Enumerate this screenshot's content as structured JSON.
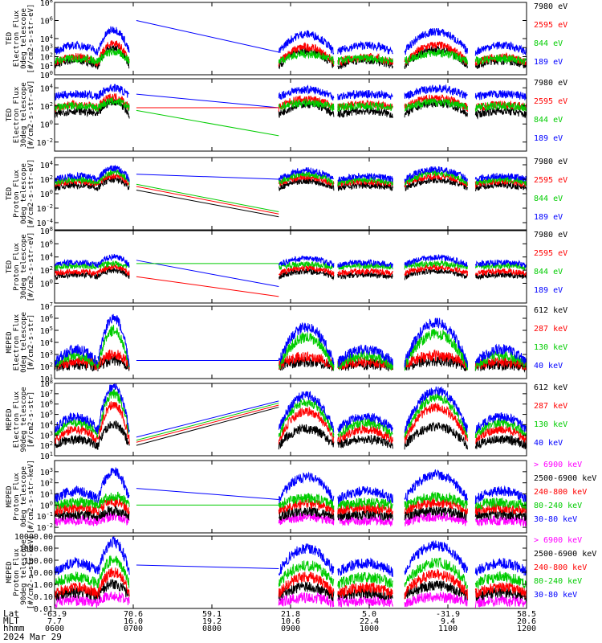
{
  "chart_data": {
    "type": "line",
    "x_axis": {
      "rows": [
        {
          "name": "Lat",
          "values": [
            "-63.9",
            "70.6",
            "59.1",
            "21.8",
            "5.0",
            "-31.9",
            "58.5"
          ]
        },
        {
          "name": "MLT",
          "values": [
            "7.7",
            "16.0",
            "19.2",
            "10.6",
            "22.4",
            "9.4",
            "20.6"
          ]
        },
        {
          "name": "hhmm",
          "values": [
            "0600",
            "0700",
            "0800",
            "0900",
            "1000",
            "1100",
            "1200"
          ]
        }
      ],
      "date": "2024 Mar 29",
      "range_hours": [
        6,
        12
      ]
    },
    "panels": [
      {
        "ylabel": [
          "TED",
          "Electron Flux",
          "0deg telescope",
          "[#/cm2-s-str-eV]"
        ],
        "yticks": [
          {
            "label": "10^8",
            "exp": 8,
            "base": "10",
            "sup": "8"
          },
          {
            "label": "10^6",
            "exp": 6,
            "base": "10",
            "sup": "6"
          },
          {
            "label": "10^4",
            "exp": 4,
            "base": "10",
            "sup": "4"
          },
          {
            "label": "10^3",
            "exp": 3,
            "base": "10",
            "sup": "3"
          },
          {
            "label": "10^2",
            "exp": 2,
            "base": "10",
            "sup": "2"
          },
          {
            "label": "10^1",
            "exp": 1,
            "base": "10",
            "sup": "1"
          },
          {
            "label": "10^0",
            "exp": 0,
            "base": "10",
            "sup": "0"
          }
        ],
        "yrange_log10": [
          0,
          8
        ],
        "series": [
          {
            "name": "7980 eV",
            "color": "#000000",
            "peak_log": 3.0,
            "floor_log": 1.0
          },
          {
            "name": "2595 eV",
            "color": "#ff0000",
            "peak_log": 3.5,
            "floor_log": 1.3
          },
          {
            "name": "844 eV",
            "color": "#00cc00",
            "peak_log": 2.5,
            "floor_log": 1.5
          },
          {
            "name": "189 eV",
            "color": "#0000ff",
            "peak_log": 5.0,
            "floor_log": 2.5
          }
        ],
        "gap_lines": [
          {
            "color": "#0000ff",
            "from_log": 6.0,
            "to_log": 2.5
          }
        ]
      },
      {
        "ylabel": [
          "TED",
          "Electron Flux",
          "30deg telescope",
          "[#/cm2-s-str-eV]"
        ],
        "yticks": [
          {
            "label": "10^4",
            "exp": 4,
            "base": "10",
            "sup": "4"
          },
          {
            "label": "10^2",
            "exp": 2,
            "base": "10",
            "sup": "2"
          },
          {
            "label": "10^0",
            "exp": 0,
            "base": "10",
            "sup": "0"
          },
          {
            "label": "10^-2",
            "exp": -2,
            "base": "10",
            "sup": "-2"
          }
        ],
        "yrange_log10": [
          -3,
          5
        ],
        "series": [
          {
            "name": "7980 eV",
            "color": "#000000",
            "peak_log": 2.5,
            "floor_log": 1.0
          },
          {
            "name": "2595 eV",
            "color": "#ff0000",
            "peak_log": 3.0,
            "floor_log": 1.8
          },
          {
            "name": "844 eV",
            "color": "#00cc00",
            "peak_log": 2.5,
            "floor_log": 1.8
          },
          {
            "name": "189 eV",
            "color": "#0000ff",
            "peak_log": 4.0,
            "floor_log": 3.0
          }
        ],
        "gap_lines": [
          {
            "color": "#0000ff",
            "from_log": 3.3,
            "to_log": 1.8
          },
          {
            "color": "#ff0000",
            "from_log": 1.8,
            "to_log": 1.8
          },
          {
            "color": "#00cc00",
            "from_log": 1.5,
            "to_log": -1.3
          }
        ]
      },
      {
        "ylabel": [
          "TED",
          "Proton Flux",
          "0deg telescope",
          "[#/cm2-s-str-eV]"
        ],
        "yticks": [
          {
            "label": "10^4",
            "exp": 4,
            "base": "10",
            "sup": "4"
          },
          {
            "label": "10^2",
            "exp": 2,
            "base": "10",
            "sup": "2"
          },
          {
            "label": "10^0",
            "exp": 0,
            "base": "10",
            "sup": "0"
          },
          {
            "label": "10^-2",
            "exp": -2,
            "base": "10",
            "sup": "-2"
          },
          {
            "label": "10^-4",
            "exp": -4,
            "base": "10",
            "sup": "-4"
          }
        ],
        "yrange_log10": [
          -5,
          5
        ],
        "series": [
          {
            "name": "7980 eV",
            "color": "#000000",
            "peak_log": 2.0,
            "floor_log": 0.8
          },
          {
            "name": "2595 eV",
            "color": "#ff0000",
            "peak_log": 2.5,
            "floor_log": 1.3
          },
          {
            "name": "844 eV",
            "color": "#00cc00",
            "peak_log": 3.0,
            "floor_log": 1.5
          },
          {
            "name": "189 eV",
            "color": "#0000ff",
            "peak_log": 3.5,
            "floor_log": 2.0
          }
        ],
        "gap_lines": [
          {
            "color": "#0000ff",
            "from_log": 2.7,
            "to_log": 2.0
          },
          {
            "color": "#00cc00",
            "from_log": 1.3,
            "to_log": -2.5
          },
          {
            "color": "#ff0000",
            "from_log": 1.0,
            "to_log": -2.8
          },
          {
            "color": "#000000",
            "from_log": 0.5,
            "to_log": -3.2
          }
        ]
      },
      {
        "ylabel": [
          "TED",
          "Proton Flux",
          "30deg telescope",
          "[#/cm2-s-str-eV]"
        ],
        "yticks": [
          {
            "label": "10^8",
            "exp": 8,
            "base": "10",
            "sup": "8"
          },
          {
            "label": "10^6",
            "exp": 6,
            "base": "10",
            "sup": "6"
          },
          {
            "label": "10^4",
            "exp": 4,
            "base": "10",
            "sup": "4"
          },
          {
            "label": "10^2",
            "exp": 2,
            "base": "10",
            "sup": "2"
          },
          {
            "label": "10^0",
            "exp": 0,
            "base": "10",
            "sup": "0"
          }
        ],
        "yrange_log10": [
          -3,
          8
        ],
        "series": [
          {
            "name": "7980 eV",
            "color": "#000000",
            "peak_log": 2.0,
            "floor_log": 1.0
          },
          {
            "name": "2595 eV",
            "color": "#ff0000",
            "peak_log": 2.5,
            "floor_log": 1.5
          },
          {
            "name": "844 eV",
            "color": "#00cc00",
            "peak_log": 3.0,
            "floor_log": 2.5
          },
          {
            "name": "189 eV",
            "color": "#0000ff",
            "peak_log": 4.0,
            "floor_log": 2.8
          }
        ],
        "gap_lines": [
          {
            "color": "#0000ff",
            "from_log": 3.5,
            "to_log": -0.5
          },
          {
            "color": "#00cc00",
            "from_log": 3.0,
            "to_log": 3.0
          },
          {
            "color": "#ff0000",
            "from_log": 1.0,
            "to_log": -2.0
          }
        ]
      },
      {
        "ylabel": [
          "MEPED",
          "Electron Flux",
          "0deg telescope",
          "[#/cm2-s-str]"
        ],
        "yticks": [
          {
            "label": "10^7",
            "exp": 7,
            "base": "10",
            "sup": "7"
          },
          {
            "label": "10^6",
            "exp": 6,
            "base": "10",
            "sup": "6"
          },
          {
            "label": "10^5",
            "exp": 5,
            "base": "10",
            "sup": "5"
          },
          {
            "label": "10^4",
            "exp": 4,
            "base": "10",
            "sup": "4"
          },
          {
            "label": "10^3",
            "exp": 3,
            "base": "10",
            "sup": "3"
          },
          {
            "label": "10^2",
            "exp": 2,
            "base": "10",
            "sup": "2"
          },
          {
            "label": "10^1",
            "exp": 1,
            "base": "10",
            "sup": "1"
          }
        ],
        "yrange_log10": [
          1,
          7
        ],
        "series": [
          {
            "name": "612 keV",
            "color": "#000000",
            "peak_log": 2.5,
            "floor_log": 2.0
          },
          {
            "name": "287 keV",
            "color": "#ff0000",
            "peak_log": 3.0,
            "floor_log": 2.1
          },
          {
            "name": "130 keV",
            "color": "#00cc00",
            "peak_log": 5.0,
            "floor_log": 2.0
          },
          {
            "name": "40 keV",
            "color": "#0000ff",
            "peak_log": 6.0,
            "floor_log": 2.3
          }
        ],
        "gap_lines": [
          {
            "color": "#0000ff",
            "from_log": 2.5,
            "to_log": 2.5
          }
        ]
      },
      {
        "ylabel": [
          "MEPED",
          "Electron Flux",
          "90deg telescope",
          "[#/cm2-s-str]"
        ],
        "yticks": [
          {
            "label": "10^8",
            "exp": 8,
            "base": "10",
            "sup": "8"
          },
          {
            "label": "10^7",
            "exp": 7,
            "base": "10",
            "sup": "7"
          },
          {
            "label": "10^6",
            "exp": 6,
            "base": "10",
            "sup": "6"
          },
          {
            "label": "10^5",
            "exp": 5,
            "base": "10",
            "sup": "5"
          },
          {
            "label": "10^4",
            "exp": 4,
            "base": "10",
            "sup": "4"
          },
          {
            "label": "10^3",
            "exp": 3,
            "base": "10",
            "sup": "3"
          },
          {
            "label": "10^2",
            "exp": 2,
            "base": "10",
            "sup": "2"
          },
          {
            "label": "10^1",
            "exp": 1,
            "base": "10",
            "sup": "1"
          }
        ],
        "yrange_log10": [
          1,
          8
        ],
        "series": [
          {
            "name": "612 keV",
            "color": "#000000",
            "peak_log": 4.0,
            "floor_log": 2.0
          },
          {
            "name": "287 keV",
            "color": "#ff0000",
            "peak_log": 6.0,
            "floor_log": 2.5
          },
          {
            "name": "130 keV",
            "color": "#00cc00",
            "peak_log": 7.0,
            "floor_log": 3.0
          },
          {
            "name": "40 keV",
            "color": "#0000ff",
            "peak_log": 7.7,
            "floor_log": 3.5
          }
        ],
        "gap_lines": [
          {
            "color": "#0000ff",
            "from_log": 2.8,
            "to_log": 6.3
          },
          {
            "color": "#00cc00",
            "from_log": 2.5,
            "to_log": 6.1
          },
          {
            "color": "#ff0000",
            "from_log": 2.3,
            "to_log": 5.9
          },
          {
            "color": "#000000",
            "from_log": 2.0,
            "to_log": 5.7
          }
        ]
      },
      {
        "ylabel": [
          "MEPED",
          "Proton Flux",
          "0deg telescope",
          "[#/cm2-s-str-keV]"
        ],
        "yticks": [
          {
            "label": "10^3",
            "exp": 3,
            "base": "10",
            "sup": "3"
          },
          {
            "label": "10^2",
            "exp": 2,
            "base": "10",
            "sup": "2"
          },
          {
            "label": "10^1",
            "exp": 1,
            "base": "10",
            "sup": "1"
          },
          {
            "label": "10^0",
            "exp": 0,
            "base": "10",
            "sup": "0"
          },
          {
            "label": "10^-1",
            "exp": -1,
            "base": "10",
            "sup": "-1"
          },
          {
            "label": "10^-2",
            "exp": -2,
            "base": "10",
            "sup": "-2"
          }
        ],
        "yrange_log10": [
          -2.5,
          4
        ],
        "series": [
          {
            "name": "> 6900 keV",
            "color": "#ff00ff",
            "peak_log": -1.0,
            "floor_log": -1.5
          },
          {
            "name": "2500-6900 keV",
            "color": "#000000",
            "peak_log": -0.5,
            "floor_log": -1.0
          },
          {
            "name": "240-800 keV",
            "color": "#ff0000",
            "peak_log": 0.3,
            "floor_log": -0.5
          },
          {
            "name": "80-240 keV",
            "color": "#00cc00",
            "peak_log": 0.8,
            "floor_log": 0.0
          },
          {
            "name": "30-80 keV",
            "color": "#0000ff",
            "peak_log": 3.0,
            "floor_log": 0.5
          }
        ],
        "gap_lines": [
          {
            "color": "#0000ff",
            "from_log": 1.5,
            "to_log": 0.5
          },
          {
            "color": "#00cc00",
            "from_log": 0.0,
            "to_log": 0.0
          }
        ]
      },
      {
        "ylabel": [
          "MEPED",
          "Proton Flux",
          "90deg telescope",
          "[#/cm2-s-str-keV]"
        ],
        "yticks": [
          {
            "label": "10000.00",
            "exp": 4
          },
          {
            "label": "1000.00",
            "exp": 3
          },
          {
            "label": "100.00",
            "exp": 2
          },
          {
            "label": "10.00",
            "exp": 1
          },
          {
            "label": "1.00",
            "exp": 0
          },
          {
            "label": "0.10",
            "exp": -1
          },
          {
            "label": "0.01",
            "exp": -2
          }
        ],
        "yrange_log10": [
          -2,
          4
        ],
        "series": [
          {
            "name": "> 6900 keV",
            "color": "#ff00ff",
            "peak_log": -1.0,
            "floor_log": -1.5
          },
          {
            "name": "2500-6900 keV",
            "color": "#000000",
            "peak_log": 0.0,
            "floor_log": -1.0
          },
          {
            "name": "240-800 keV",
            "color": "#ff0000",
            "peak_log": 1.0,
            "floor_log": -0.8
          },
          {
            "name": "80-240 keV",
            "color": "#00cc00",
            "peak_log": 2.0,
            "floor_log": 0.0
          },
          {
            "name": "30-80 keV",
            "color": "#0000ff",
            "peak_log": 3.5,
            "floor_log": 1.0
          }
        ],
        "gap_lines": [
          {
            "color": "#0000ff",
            "from_log": 1.6,
            "to_log": 1.3
          }
        ]
      }
    ]
  }
}
